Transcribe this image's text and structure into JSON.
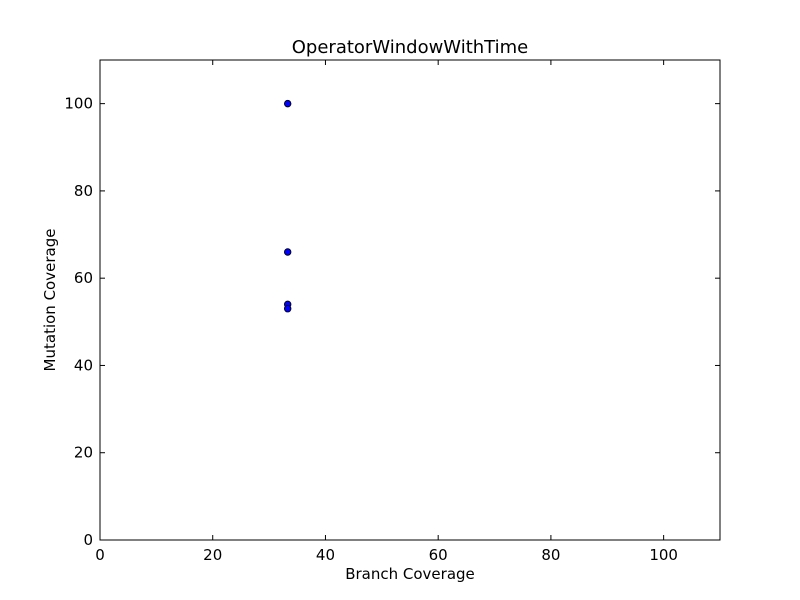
{
  "chart_data": {
    "type": "scatter",
    "title": "OperatorWindowWithTime",
    "xlabel": "Branch Coverage",
    "ylabel": "Mutation Coverage",
    "xlim": [
      0,
      110
    ],
    "ylim": [
      0,
      110
    ],
    "xticks": [
      0,
      20,
      40,
      60,
      80,
      100
    ],
    "yticks": [
      0,
      20,
      40,
      60,
      80,
      100
    ],
    "grid": false,
    "series": [
      {
        "color": "#0000ff",
        "points": [
          {
            "x": 33.3,
            "y": 100
          },
          {
            "x": 33.3,
            "y": 66
          },
          {
            "x": 33.3,
            "y": 54
          },
          {
            "x": 33.3,
            "y": 53
          }
        ]
      }
    ]
  }
}
